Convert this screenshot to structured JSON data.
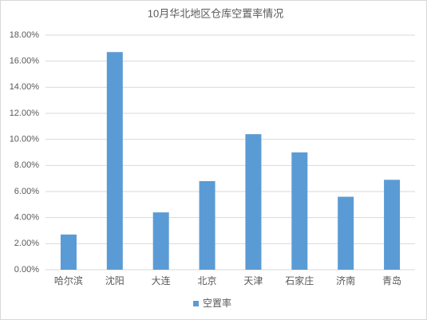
{
  "chart_data": {
    "type": "bar",
    "title": "10月华北地区仓库空置率情况",
    "categories": [
      "哈尔滨",
      "沈阳",
      "大连",
      "北京",
      "天津",
      "石家庄",
      "济南",
      "青岛"
    ],
    "series": [
      {
        "name": "空置率",
        "color": "#5b9bd5",
        "values": [
          2.7,
          16.7,
          4.4,
          6.8,
          10.4,
          9.0,
          5.6,
          6.9
        ]
      }
    ],
    "ylim": [
      0,
      18
    ],
    "yticks": [
      {
        "value": 0,
        "label": "0.00%"
      },
      {
        "value": 2,
        "label": "2.00%"
      },
      {
        "value": 4,
        "label": "4.00%"
      },
      {
        "value": 6,
        "label": "6.00%"
      },
      {
        "value": 8,
        "label": "8.00%"
      },
      {
        "value": 10,
        "label": "10.00%"
      },
      {
        "value": 12,
        "label": "12.00%"
      },
      {
        "value": 14,
        "label": "14.00%"
      },
      {
        "value": 16,
        "label": "16.00%"
      },
      {
        "value": 18,
        "label": "18.00%"
      }
    ],
    "grid": true,
    "legend": "bottom"
  }
}
